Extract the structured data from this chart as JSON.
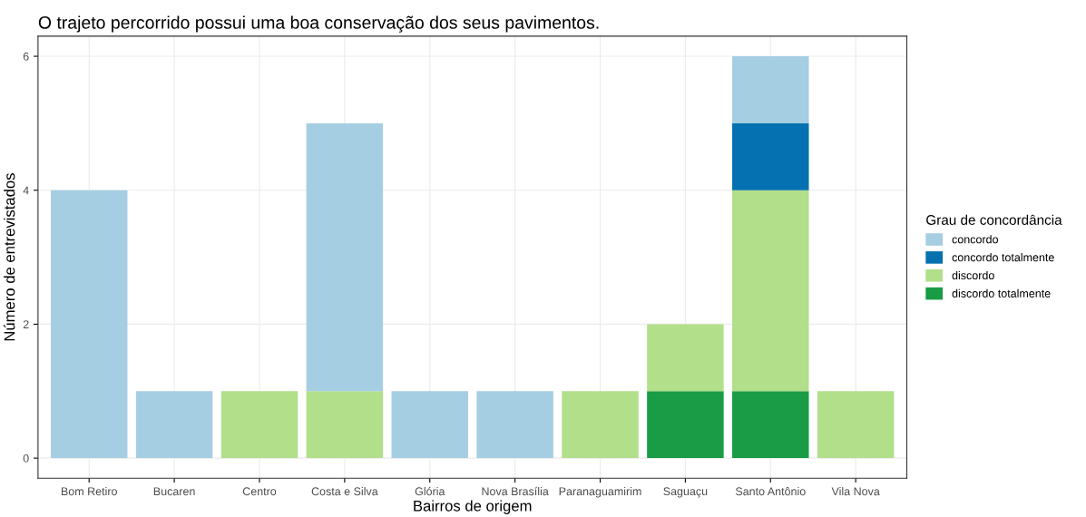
{
  "chart_data": {
    "type": "bar",
    "title": "O trajeto percorrido possui uma boa conservação dos seus pavimentos.",
    "xlabel": "Bairros de origem",
    "ylabel": "Número de entrevistados",
    "legend_title": "Grau de concordância",
    "categories": [
      "Bom Retiro",
      "Bucaren",
      "Centro",
      "Costa e Silva",
      "Glória",
      "Nova Brasília",
      "Paranaguamirim",
      "Saguaçu",
      "Santo Antônio",
      "Vila Nova"
    ],
    "stacked": true,
    "series": [
      {
        "name": "discordo totalmente",
        "color": "#1a9c46",
        "values": [
          null,
          null,
          null,
          null,
          null,
          null,
          null,
          1,
          1,
          null
        ]
      },
      {
        "name": "discordo",
        "color": "#b2df8a",
        "values": [
          null,
          null,
          1,
          1,
          null,
          null,
          1,
          1,
          3,
          1
        ]
      },
      {
        "name": "concordo totalmente",
        "color": "#0571b0",
        "values": [
          null,
          null,
          null,
          null,
          null,
          null,
          null,
          null,
          1,
          null
        ]
      },
      {
        "name": "concordo",
        "color": "#a6cee3",
        "values": [
          4,
          1,
          null,
          4,
          1,
          1,
          null,
          null,
          1,
          null
        ]
      }
    ],
    "ylim": [
      -0.3,
      6.3
    ],
    "yticks": [
      0,
      2,
      4,
      6
    ],
    "grid": true,
    "legend": "right"
  }
}
